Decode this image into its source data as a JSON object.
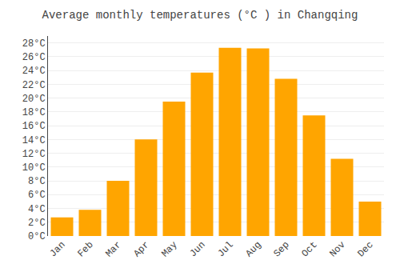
{
  "chart_data": {
    "type": "bar",
    "title": "Average monthly temperatures (°C ) in Changqing",
    "categories": [
      "Jan",
      "Feb",
      "Mar",
      "Apr",
      "May",
      "Jun",
      "Jul",
      "Aug",
      "Sep",
      "Oct",
      "Nov",
      "Dec"
    ],
    "values": [
      2.7,
      3.8,
      8.0,
      14.0,
      19.5,
      23.7,
      27.3,
      27.2,
      22.8,
      17.5,
      11.2,
      5.0
    ],
    "color": "#FFA500",
    "ylim": [
      0,
      29
    ],
    "yticks": [
      {
        "value": 0,
        "label": "0°C"
      },
      {
        "value": 2,
        "label": "2°C"
      },
      {
        "value": 4,
        "label": "4°C"
      },
      {
        "value": 6,
        "label": "6°C"
      },
      {
        "value": 8,
        "label": "8°C"
      },
      {
        "value": 10,
        "label": "10°C"
      },
      {
        "value": 12,
        "label": "12°C"
      },
      {
        "value": 14,
        "label": "14°C"
      },
      {
        "value": 16,
        "label": "16°C"
      },
      {
        "value": 18,
        "label": "18°C"
      },
      {
        "value": 20,
        "label": "20°C"
      },
      {
        "value": 22,
        "label": "22°C"
      },
      {
        "value": 24,
        "label": "24°C"
      },
      {
        "value": 26,
        "label": "26°C"
      },
      {
        "value": 28,
        "label": "28°C"
      }
    ],
    "grid": true
  }
}
